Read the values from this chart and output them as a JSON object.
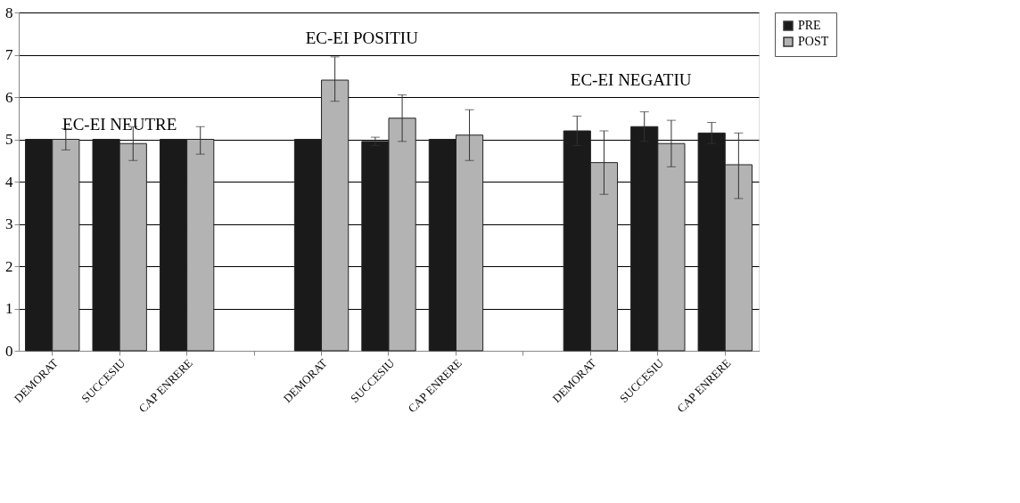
{
  "chart_data": {
    "type": "bar",
    "categories": [
      "DEMORAT",
      "SUCCESIU",
      "CAP ENRERE",
      null,
      "DEMORAT",
      "SUCCESIU",
      "CAP ENRERE",
      null,
      "DEMORAT",
      "SUCCESIU",
      "CAP ENRERE"
    ],
    "series": [
      {
        "name": "PRE",
        "color": "#1a1a1a",
        "values": [
          5,
          5,
          5,
          null,
          5,
          4.95,
          5,
          null,
          5.2,
          5.3,
          5.15
        ],
        "errors": [
          null,
          null,
          null,
          null,
          null,
          0.1,
          null,
          null,
          0.35,
          0.35,
          0.25
        ]
      },
      {
        "name": "POST",
        "color": "#b3b3b3",
        "values": [
          5,
          4.9,
          5,
          null,
          6.4,
          5.5,
          5.1,
          null,
          4.45,
          4.9,
          4.4
        ],
        "errors": [
          0.25,
          [
            4.5,
            5.3
          ],
          [
            4.65,
            5.3
          ],
          null,
          [
            5.9,
            6.95
          ],
          [
            4.95,
            6.05
          ],
          [
            4.5,
            5.7
          ],
          null,
          [
            3.7,
            5.2
          ],
          [
            4.35,
            5.45
          ],
          [
            3.6,
            5.15
          ]
        ]
      }
    ],
    "ylim": [
      0,
      8
    ],
    "yticks": [
      0,
      1,
      2,
      3,
      4,
      5,
      6,
      7,
      8
    ],
    "grid": "y",
    "legend": "right",
    "annotations": [
      "EC-EI NEUTRE",
      "EC-EI POSITIU",
      "EC-EI NEGATIU"
    ]
  }
}
